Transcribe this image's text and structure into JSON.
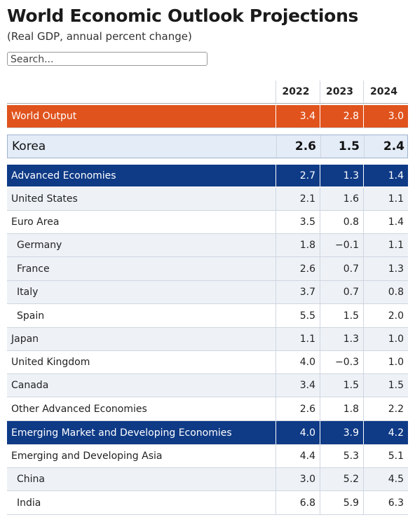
{
  "header": {
    "title": "World Economic Outlook Projections",
    "subtitle": "(Real GDP, annual percent change)",
    "search_placeholder": "Search..."
  },
  "table": {
    "columns": [
      "2022",
      "2023",
      "2024"
    ],
    "rows": [
      {
        "label": "World Output",
        "values": [
          "3.4",
          "2.8",
          "3.0"
        ]
      },
      {
        "label": "Korea",
        "values": [
          "2.6",
          "1.5",
          "2.4"
        ]
      },
      {
        "label": "Advanced Economies",
        "values": [
          "2.7",
          "1.3",
          "1.4"
        ]
      },
      {
        "label": "United States",
        "values": [
          "2.1",
          "1.6",
          "1.1"
        ]
      },
      {
        "label": "Euro Area",
        "values": [
          "3.5",
          "0.8",
          "1.4"
        ]
      },
      {
        "label": "Germany",
        "values": [
          "1.8",
          "−0.1",
          "1.1"
        ]
      },
      {
        "label": "France",
        "values": [
          "2.6",
          "0.7",
          "1.3"
        ]
      },
      {
        "label": "Italy",
        "values": [
          "3.7",
          "0.7",
          "0.8"
        ]
      },
      {
        "label": "Spain",
        "values": [
          "5.5",
          "1.5",
          "2.0"
        ]
      },
      {
        "label": "Japan",
        "values": [
          "1.1",
          "1.3",
          "1.0"
        ]
      },
      {
        "label": "United Kingdom",
        "values": [
          "4.0",
          "−0.3",
          "1.0"
        ]
      },
      {
        "label": "Canada",
        "values": [
          "3.4",
          "1.5",
          "1.5"
        ]
      },
      {
        "label": "Other Advanced Economies",
        "values": [
          "2.6",
          "1.8",
          "2.2"
        ]
      },
      {
        "label": "Emerging Market and Developing Economies",
        "values": [
          "4.0",
          "3.9",
          "4.2"
        ]
      },
      {
        "label": "Emerging and Developing Asia",
        "values": [
          "4.4",
          "5.3",
          "5.1"
        ]
      },
      {
        "label": "China",
        "values": [
          "3.0",
          "5.2",
          "4.5"
        ]
      },
      {
        "label": "India",
        "values": [
          "6.8",
          "5.9",
          "6.3"
        ]
      }
    ]
  }
}
